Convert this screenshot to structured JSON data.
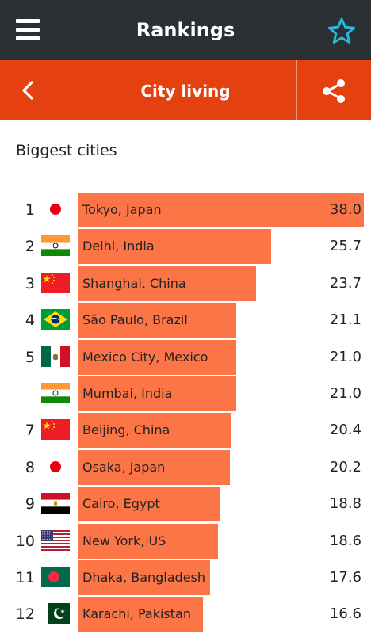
{
  "header": {
    "title": "Rankings",
    "menu_icon": "hamburger-menu-icon",
    "star_icon": "star-outline-icon",
    "star_color": "#2bb5d6",
    "background": "#2b3035"
  },
  "subheader": {
    "title": "City living",
    "back_icon": "chevron-left-icon",
    "share_icon": "share-icon",
    "background": "#e5400f"
  },
  "section": {
    "title": "Biggest cities"
  },
  "bar_color": "#fb7547",
  "max_value": 38.0,
  "rankings": [
    {
      "rank": "1",
      "flag": "japan",
      "city": "Tokyo, Japan",
      "value": "38.0",
      "num": 38.0
    },
    {
      "rank": "2",
      "flag": "india",
      "city": "Delhi, India",
      "value": "25.7",
      "num": 25.7
    },
    {
      "rank": "3",
      "flag": "china",
      "city": "Shanghai, China",
      "value": "23.7",
      "num": 23.7
    },
    {
      "rank": "4",
      "flag": "brazil",
      "city": "São Paulo, Brazil",
      "value": "21.1",
      "num": 21.1
    },
    {
      "rank": "5",
      "flag": "mexico",
      "city": "Mexico City, Mexico",
      "value": "21.0",
      "num": 21.0
    },
    {
      "rank": "",
      "flag": "india",
      "city": "Mumbai, India",
      "value": "21.0",
      "num": 21.0
    },
    {
      "rank": "7",
      "flag": "china",
      "city": "Beijing, China",
      "value": "20.4",
      "num": 20.4
    },
    {
      "rank": "8",
      "flag": "japan",
      "city": "Osaka, Japan",
      "value": "20.2",
      "num": 20.2
    },
    {
      "rank": "9",
      "flag": "egypt",
      "city": "Cairo, Egypt",
      "value": "18.8",
      "num": 18.8
    },
    {
      "rank": "10",
      "flag": "usa",
      "city": "New York, US",
      "value": "18.6",
      "num": 18.6
    },
    {
      "rank": "11",
      "flag": "bangladesh",
      "city": "Dhaka, Bangladesh",
      "value": "17.6",
      "num": 17.6
    },
    {
      "rank": "12",
      "flag": "pakistan",
      "city": "Karachi, Pakistan",
      "value": "16.6",
      "num": 16.6
    }
  ]
}
